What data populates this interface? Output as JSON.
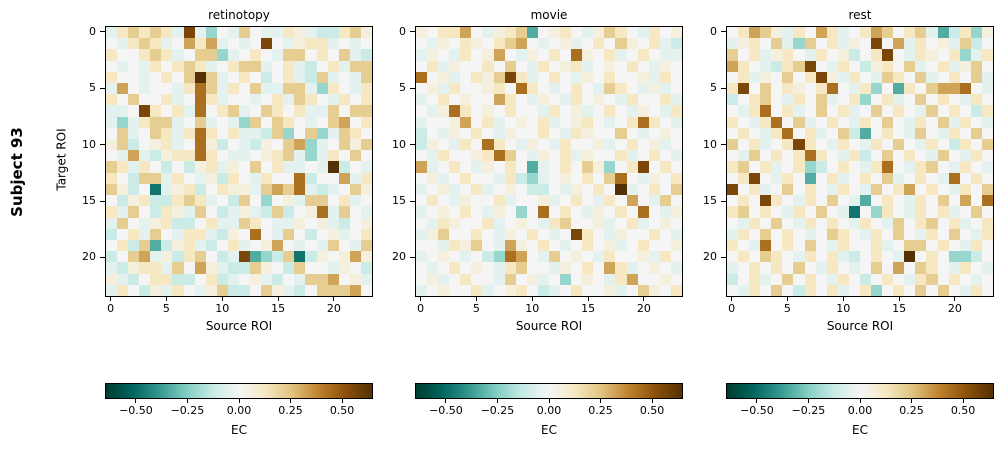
{
  "figure": {
    "background": "#ffffff",
    "row_label": "Subject 93"
  },
  "chart_data": {
    "type": "heatmap",
    "n": 24,
    "xlabel": "Source ROI",
    "ylabel": "Target ROI",
    "value_label": "EC",
    "vmin": -0.65,
    "vmax": 0.65,
    "axis_ticks": {
      "values": [
        0,
        5,
        10,
        15,
        20
      ],
      "labels": [
        "0",
        "5",
        "10",
        "15",
        "20"
      ]
    },
    "colorbar": {
      "label": "EC",
      "tick_values": [
        -0.5,
        -0.25,
        0,
        0.25,
        0.5
      ],
      "tick_labels": [
        "−0.50",
        "−0.25",
        "0.00",
        "0.25",
        "0.50"
      ]
    },
    "colormap": {
      "name": "BrBG_r",
      "stops": [
        [
          0,
          "#003c30"
        ],
        [
          0.1,
          "#01665e"
        ],
        [
          0.2,
          "#35978f"
        ],
        [
          0.3,
          "#80cdc1"
        ],
        [
          0.4,
          "#c7eae5"
        ],
        [
          0.5,
          "#f5f5f5"
        ],
        [
          0.6,
          "#f6e8c3"
        ],
        [
          0.7,
          "#dfc27d"
        ],
        [
          0.8,
          "#bf812d"
        ],
        [
          0.9,
          "#8c510a"
        ],
        [
          1,
          "#543005"
        ]
      ]
    },
    "bins": {
      "0": -0.62,
      "1": -0.48,
      "2": -0.34,
      "3": -0.22,
      "4": -0.12,
      "5": -0.05,
      "6": 0.0,
      "7": 0.06,
      "8": 0.13,
      "9": 0.22,
      "a": 0.32,
      "b": 0.44,
      "c": 0.56,
      "d": 0.68
    },
    "panels": [
      {
        "title": "retinotopy",
        "rows": [
          "5898985c5365965587544897",
          "6589856a8a5656c657885656",
          "866898569935686599686954",
          "656586898568995685468599",
          "86656869d956864685495659",
          "5a656658b958695599538658",
          "86966856b856656859865868",
          "556c8685b689569868559699",
          "535899569565396986569a68",
          "69569858b868554936935986",
          "79467856b74654769a356979",
          "65a54788b865567895358696",
          "98586464785769685565d465",
          "86499586574865866b466a58",
          "974615784687759a9b545697",
          "647844898564963675996856",
          "8596487596457549467b5965",
          "596578446855986557675467",
          "4685965885476b6596467568",
          "684924785468567a65659659",
          "469a57489645c234914767a7",
          "54788596a754497649665764",
          "75468844684567546599a675",
          "5864758657944697546999a6"
        ]
      },
      {
        "title": "movie",
        "rows": [
          "7688a6578926786579865867",
          "657687689a65675686976854",
          "5765867a657686b768568655",
          "685766869658678567686576",
          "b6756879c856865768667586",
          "675866786b86568659865756",
          "5686766a8657658676586685",
          "657b86768665867568657658",
          "5667a685676856786568b865",
          "465768657668658766965676",
          "476586b86576586675686756",
          "6586678b9657685766856865",
          "a5686576862568697368c686",
          "675686658435676869b65768",
          "567568567644657686d56869",
          "6865766856675686586a6596",
          "56768657636b68657686b657",
          "658766856765896675685676",
          "57966865768656c865766865",
          "66587965a768656867568667",
          "56765643ba65967658667586",
          "65686765896657686a856765",
          "6756866596756367658a6676",
          "567668567864568667569768"
        ]
      },
      {
        "title": "rest",
        "rows": [
          "68a97586a8568a9689524837",
          "5786953968576c6a58675946",
          "96857865867468c658768358",
          "a865489c6586478695685796",
          "68576968c758659869568695",
          "8c6968768b658362869aab65",
          "468965869568368569686586",
          "658b68569685696865968648",
          "8658b6956865869658695865",
          "68658b685694268659658696",
          "968568c86586586965864869",
          "6596868b8658469686596586",
          "89685683468658b658965865",
          "68c65862685686956865b686",
          "c685696865865968a6865869",
          "686c86586965268658696a6b",
          "896865869651638658685696",
          "658696586865865968968568",
          "586968656986586965869658",
          "865b68696586685699686586",
          "6869865868546865d6863346",
          "568686965865696a69865865",
          "468569686586468658968656",
          "658696486856836869696586"
        ]
      }
    ]
  }
}
